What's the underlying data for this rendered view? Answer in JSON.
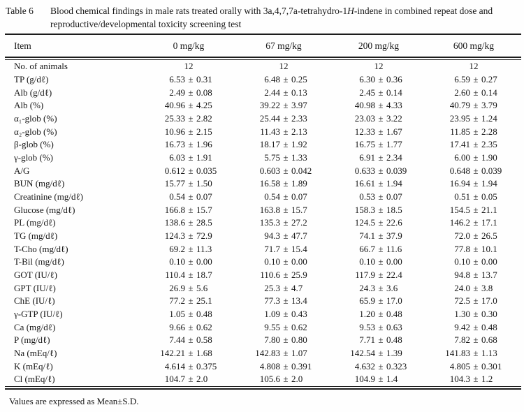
{
  "page": {
    "label": "Table 6",
    "title_pre": "Blood chemical findings in male rats treated orally with 3a,4,7,7a-tetrahydro-1",
    "title_italic": "H",
    "title_post": "-indene in combined repeat dose and reproductive/developmental toxicity screening test",
    "footnote": "Values are expressed as Mean±S.D."
  },
  "table": {
    "columns": [
      "Item",
      "0 mg/kg",
      "67 mg/kg",
      "200 mg/kg",
      "600 mg/kg"
    ],
    "rows": [
      {
        "item": "No. of animals",
        "values": [
          "12",
          "12",
          "12",
          "12"
        ]
      },
      {
        "item": "TP (g/dℓ)",
        "values": [
          "6.53 ± 0.31",
          "6.48 ± 0.25",
          "6.30 ± 0.36",
          "6.59 ± 0.27"
        ]
      },
      {
        "item": "Alb (g/dℓ)",
        "values": [
          "2.49 ± 0.08",
          "2.44 ± 0.13",
          "2.45 ± 0.14",
          "2.60 ± 0.14"
        ]
      },
      {
        "item": "Alb (%)",
        "values": [
          "40.96 ± 4.25",
          "39.22 ± 3.97",
          "40.98 ± 4.33",
          "40.79 ± 3.79"
        ]
      },
      {
        "item": "α₁-glob (%)",
        "values": [
          "25.33 ± 2.82",
          "25.44 ± 2.33",
          "23.03 ± 3.22",
          "23.95 ± 1.24"
        ]
      },
      {
        "item": "α₂-glob (%)",
        "values": [
          "10.96 ± 2.15",
          "11.43 ± 2.13",
          "12.33 ± 1.67",
          "11.85 ± 2.28"
        ]
      },
      {
        "item": "β-glob (%)",
        "values": [
          "16.73 ± 1.96",
          "18.17 ± 1.92",
          "16.75 ± 1.77",
          "17.41 ± 2.35"
        ]
      },
      {
        "item": "γ-glob (%)",
        "values": [
          "6.03 ± 1.91",
          "5.75 ± 1.33",
          "6.91 ± 2.34",
          "6.00 ± 1.90"
        ]
      },
      {
        "item": "A/G",
        "values": [
          "0.612 ± 0.035",
          "0.603 ± 0.042",
          "0.633 ± 0.039",
          "0.648 ± 0.039"
        ]
      },
      {
        "item": "BUN (mg/dℓ)",
        "values": [
          "15.77 ± 1.50",
          "16.58 ± 1.89",
          "16.61 ± 1.94",
          "16.94 ± 1.94"
        ]
      },
      {
        "item": "Creatinine (mg/dℓ)",
        "values": [
          "0.54 ± 0.07",
          "0.54 ± 0.07",
          "0.53 ± 0.07",
          "0.51 ± 0.05"
        ]
      },
      {
        "item": "Glucose (mg/dℓ)",
        "values": [
          "166.8 ± 15.7",
          "163.8 ± 15.7",
          "158.3 ± 18.5",
          "154.5 ± 21.1"
        ]
      },
      {
        "item": "PL (mg/dℓ)",
        "values": [
          "138.6 ± 28.5",
          "135.3 ± 27.2",
          "124.5 ± 22.6",
          "146.2 ± 17.1"
        ]
      },
      {
        "item": "TG (mg/dℓ)",
        "values": [
          "124.3 ± 72.9",
          "94.3 ± 47.7",
          "74.1 ± 37.9",
          "72.0 ± 26.5"
        ]
      },
      {
        "item": "T-Cho (mg/dℓ)",
        "values": [
          "69.2 ± 11.3",
          "71.7 ± 15.4",
          "66.7 ± 11.6",
          "77.8 ± 10.1"
        ]
      },
      {
        "item": "T-Bil (mg/dℓ)",
        "values": [
          "0.10 ± 0.00",
          "0.10 ± 0.00",
          "0.10 ± 0.00",
          "0.10 ± 0.00"
        ]
      },
      {
        "item": "GOT (IU/ℓ)",
        "values": [
          "110.4 ± 18.7",
          "110.6 ± 25.9",
          "117.9 ± 22.4",
          "94.8 ± 13.7"
        ]
      },
      {
        "item": "GPT (IU/ℓ)",
        "values": [
          "26.9 ± 5.6",
          "25.3 ± 4.7",
          "24.3 ± 3.6",
          "24.0 ± 3.8"
        ]
      },
      {
        "item": "ChE (IU/ℓ)",
        "values": [
          "77.2 ± 25.1",
          "77.3 ± 13.4",
          "65.9 ± 17.0",
          "72.5 ± 17.0"
        ]
      },
      {
        "item": "γ-GTP (IU/ℓ)",
        "values": [
          "1.05 ± 0.48",
          "1.09 ± 0.43",
          "1.20 ± 0.48",
          "1.30 ± 0.30"
        ]
      },
      {
        "item": "Ca (mg/dℓ)",
        "values": [
          "9.66 ± 0.62",
          "9.55 ± 0.62",
          "9.53 ± 0.63",
          "9.42 ± 0.48"
        ]
      },
      {
        "item": "P (mg/dℓ)",
        "values": [
          "7.44 ± 0.58",
          "7.80 ± 0.80",
          "7.71 ± 0.48",
          "7.82 ± 0.68"
        ]
      },
      {
        "item": "Na (mEq/ℓ)",
        "values": [
          "142.21 ± 1.68",
          "142.83 ± 1.07",
          "142.54 ± 1.39",
          "141.83 ± 1.13"
        ]
      },
      {
        "item": "K (mEq/ℓ)",
        "values": [
          "4.614 ± 0.375",
          "4.808 ± 0.391",
          "4.632 ± 0.323",
          "4.805 ± 0.301"
        ]
      },
      {
        "item": "Cl (mEq/ℓ)",
        "values": [
          "104.7 ± 2.0",
          "105.6 ± 2.0",
          "104.9 ± 1.4",
          "104.3 ± 1.2"
        ]
      }
    ]
  }
}
